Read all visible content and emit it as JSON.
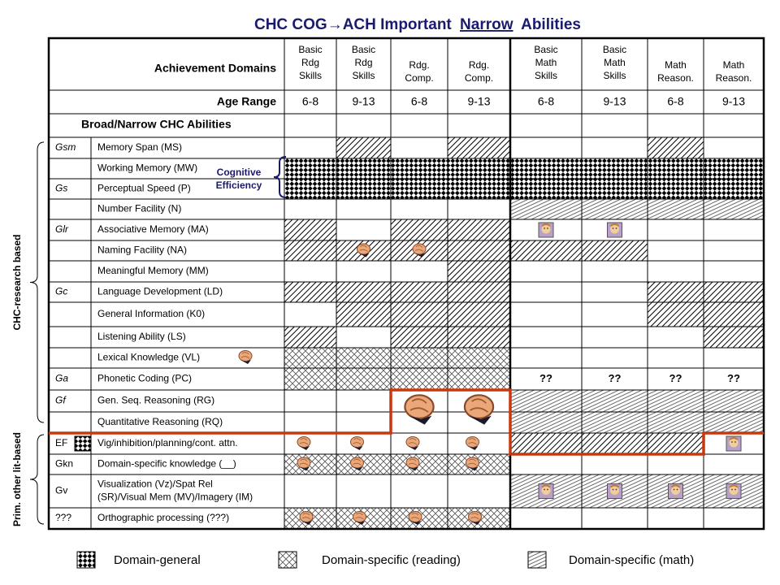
{
  "title": {
    "before": "CHC COG→ACH Important",
    "underlined": "Narrow",
    "after": "Abilities"
  },
  "header": {
    "domains_label": "Achievement Domains",
    "age_label": "Age Range",
    "abilities_label": "Broad/Narrow CHC Abilities"
  },
  "columns": [
    {
      "domain": [
        "Basic",
        "Rdg",
        "Skills"
      ],
      "age": "6-8"
    },
    {
      "domain": [
        "Basic",
        "Rdg",
        "Skills"
      ],
      "age": "9-13"
    },
    {
      "domain": [
        "Rdg.",
        "Comp."
      ],
      "age": "6-8"
    },
    {
      "domain": [
        "Rdg.",
        "Comp."
      ],
      "age": "9-13"
    },
    {
      "domain": [
        "Basic",
        "Math",
        "Skills"
      ],
      "age": "6-8"
    },
    {
      "domain": [
        "Basic",
        "Math",
        "Skills"
      ],
      "age": "9-13"
    },
    {
      "domain": [
        "Math",
        "Reason."
      ],
      "age": "6-8"
    },
    {
      "domain": [
        "Math",
        "Reason."
      ],
      "age": "9-13"
    }
  ],
  "rows": [
    {
      "group": "Gsm",
      "ability": [
        "Memory Span (MS)"
      ]
    },
    {
      "ability": [
        "Working Memory (MW)"
      ]
    },
    {
      "group": "Gs",
      "ability": [
        "Perceptual Speed (P)"
      ]
    },
    {
      "ability": [
        "Number Facility (N)"
      ]
    },
    {
      "group": "Glr",
      "ability": [
        "Associative Memory (MA)"
      ]
    },
    {
      "ability": [
        "Naming Facility (NA)"
      ]
    },
    {
      "ability": [
        "Meaningful Memory (MM)"
      ]
    },
    {
      "group": "Gc",
      "ability": [
        "Language Development (LD)"
      ]
    },
    {
      "ability": [
        "General Information (K0)"
      ]
    },
    {
      "ability": [
        "Listening Ability (LS)"
      ]
    },
    {
      "ability": [
        "Lexical Knowledge (VL)"
      ]
    },
    {
      "group": "Ga",
      "ability": [
        "Phonetic Coding (PC)"
      ],
      "math_cells": [
        "??",
        "??",
        "??",
        "??"
      ]
    },
    {
      "group": "Gf",
      "ability": [
        "Gen. Seq. Reasoning (RG)"
      ]
    },
    {
      "ability": [
        "Quantitative Reasoning (RQ)"
      ]
    },
    {
      "group": "EF",
      "ability": [
        "Vig/inhibition/planning/cont. attn."
      ]
    },
    {
      "group": "Gkn",
      "ability": [
        "Domain-specific knowledge (__)"
      ]
    },
    {
      "group": "Gv",
      "ability": [
        "Visualization (Vz)/Spat Rel",
        "(SR)/Visual Mem (MV)/Imagery (IM)"
      ]
    },
    {
      "group": "???",
      "ability": [
        "Orthographic processing (???)"
      ]
    }
  ],
  "annotation": [
    "Cognitive",
    "Efficiency"
  ],
  "side_labels": {
    "research": "CHC-research based",
    "other": "Prim. other lit-based"
  },
  "legend": [
    "Domain-general",
    "Domain-specific (reading)",
    "Domain-specific (math)"
  ]
}
